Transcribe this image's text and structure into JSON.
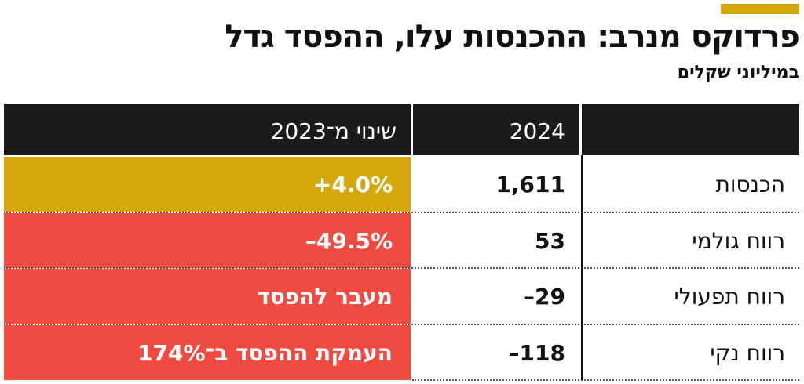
{
  "header": {
    "title": "פרדוקס מנרב: ההכנסות עלו, ההפסד גדל",
    "subtitle": "במיליוני שקלים"
  },
  "table": {
    "columns": [
      "2024",
      "שינוי מ־2023"
    ],
    "rows": [
      {
        "label": "הכנסות",
        "value": "1,611",
        "change": "+4.0%",
        "color": "#d4a80c"
      },
      {
        "label": "רווח גולמי",
        "value": "53",
        "change": "–49.5%",
        "color": "#ef4b41"
      },
      {
        "label": "רווח תפעולי",
        "value": "–29",
        "change": "מעבר להפסד",
        "color": "#ef4b41"
      },
      {
        "label": "רווח נקי",
        "value": "–118",
        "change": "העמקת ההפסד ב־174%",
        "color": "#ef4b41"
      }
    ]
  }
}
